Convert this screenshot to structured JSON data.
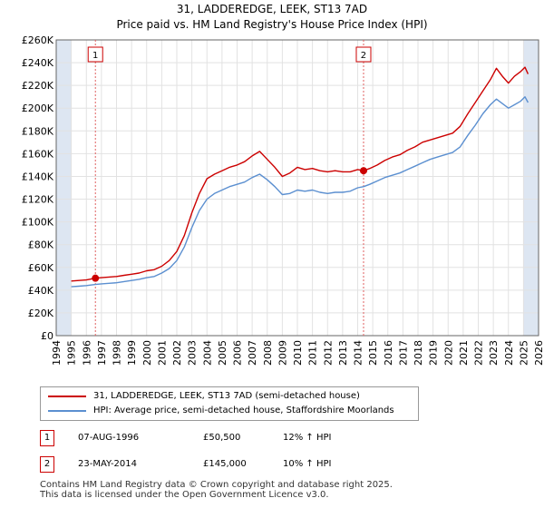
{
  "chart_data": {
    "type": "line",
    "title": "31, LADDEREDGE, LEEK, ST13 7AD",
    "subtitle": "Price paid vs. HM Land Registry's House Price Index (HPI)",
    "xlabel": "",
    "ylabel": "",
    "xlim": [
      1994,
      2026
    ],
    "ylim": [
      0,
      260000
    ],
    "x_ticks": [
      1994,
      1995,
      1996,
      1997,
      1998,
      1999,
      2000,
      2001,
      2002,
      2003,
      2004,
      2005,
      2006,
      2007,
      2008,
      2009,
      2010,
      2011,
      2012,
      2013,
      2014,
      2015,
      2016,
      2017,
      2018,
      2019,
      2020,
      2021,
      2022,
      2023,
      2024,
      2025,
      2026
    ],
    "y_ticks": [
      0,
      20000,
      40000,
      60000,
      80000,
      100000,
      120000,
      140000,
      160000,
      180000,
      200000,
      220000,
      240000,
      260000
    ],
    "y_tick_labels": [
      "£0",
      "£20K",
      "£40K",
      "£60K",
      "£80K",
      "£100K",
      "£120K",
      "£140K",
      "£160K",
      "£180K",
      "£200K",
      "£220K",
      "£240K",
      "£260K"
    ],
    "grid": true,
    "colors": {
      "property": "#cc0000",
      "hpi": "#5b8fd0",
      "marker_line": "#e06060",
      "shade": "#dde6f2"
    },
    "series": [
      {
        "name": "31, LADDEREDGE, LEEK, ST13 7AD (semi-detached house)",
        "color": "#cc0000",
        "x": [
          1995.0,
          1995.5,
          1996.0,
          1996.6,
          1997.0,
          1997.5,
          1998.0,
          1998.5,
          1999.0,
          1999.5,
          2000.0,
          2000.5,
          2001.0,
          2001.5,
          2002.0,
          2002.5,
          2003.0,
          2003.5,
          2004.0,
          2004.5,
          2005.0,
          2005.5,
          2006.0,
          2006.5,
          2007.0,
          2007.5,
          2008.0,
          2008.5,
          2009.0,
          2009.5,
          2010.0,
          2010.5,
          2011.0,
          2011.5,
          2012.0,
          2012.5,
          2013.0,
          2013.5,
          2014.0,
          2014.4,
          2014.8,
          2015.3,
          2015.8,
          2016.3,
          2016.8,
          2017.3,
          2017.8,
          2018.3,
          2018.8,
          2019.3,
          2019.8,
          2020.3,
          2020.8,
          2021.3,
          2021.8,
          2022.3,
          2022.8,
          2023.2,
          2023.6,
          2024.0,
          2024.4,
          2024.8,
          2025.1,
          2025.3
        ],
        "values": [
          48000,
          48500,
          49000,
          50500,
          51000,
          51500,
          52000,
          53000,
          54000,
          55000,
          57000,
          58000,
          61000,
          66000,
          74000,
          88000,
          108000,
          125000,
          138000,
          142000,
          145000,
          148000,
          150000,
          153000,
          158000,
          162000,
          155000,
          148000,
          140000,
          143000,
          148000,
          146000,
          147000,
          145000,
          144000,
          145000,
          144000,
          144000,
          146000,
          145000,
          147000,
          150000,
          154000,
          157000,
          159000,
          163000,
          166000,
          170000,
          172000,
          174000,
          176000,
          178000,
          184000,
          195000,
          205000,
          215000,
          225000,
          235000,
          228000,
          222000,
          228000,
          232000,
          236000,
          230000
        ]
      },
      {
        "name": "HPI: Average price, semi-detached house, Staffordshire Moorlands",
        "color": "#5b8fd0",
        "x": [
          1995.0,
          1995.5,
          1996.0,
          1996.6,
          1997.0,
          1997.5,
          1998.0,
          1998.5,
          1999.0,
          1999.5,
          2000.0,
          2000.5,
          2001.0,
          2001.5,
          2002.0,
          2002.5,
          2003.0,
          2003.5,
          2004.0,
          2004.5,
          2005.0,
          2005.5,
          2006.0,
          2006.5,
          2007.0,
          2007.5,
          2008.0,
          2008.5,
          2009.0,
          2009.5,
          2010.0,
          2010.5,
          2011.0,
          2011.5,
          2012.0,
          2012.5,
          2013.0,
          2013.5,
          2014.0,
          2014.4,
          2014.8,
          2015.3,
          2015.8,
          2016.3,
          2016.8,
          2017.3,
          2017.8,
          2018.3,
          2018.8,
          2019.3,
          2019.8,
          2020.3,
          2020.8,
          2021.3,
          2021.8,
          2022.3,
          2022.8,
          2023.2,
          2023.6,
          2024.0,
          2024.4,
          2024.8,
          2025.1,
          2025.3
        ],
        "values": [
          43000,
          43500,
          44000,
          45000,
          45500,
          46000,
          46500,
          47500,
          48500,
          49500,
          51000,
          52000,
          55000,
          59000,
          66000,
          78000,
          95000,
          110000,
          120000,
          125000,
          128000,
          131000,
          133000,
          135000,
          139000,
          142000,
          137000,
          131000,
          124000,
          125000,
          128000,
          127000,
          128000,
          126000,
          125000,
          126000,
          126000,
          127000,
          130000,
          131000,
          133000,
          136000,
          139000,
          141000,
          143000,
          146000,
          149000,
          152000,
          155000,
          157000,
          159000,
          161000,
          166000,
          176000,
          185000,
          195000,
          203000,
          208000,
          204000,
          200000,
          203000,
          206000,
          210000,
          205000
        ]
      }
    ],
    "sales": [
      {
        "id": "1",
        "x": 1996.6,
        "value": 50500
      },
      {
        "id": "2",
        "x": 2014.39,
        "value": 145000
      }
    ],
    "shaded_ranges": [
      [
        1994.0,
        1995.0
      ],
      [
        2025.0,
        2026.0
      ]
    ]
  },
  "legend": {
    "property_label": "31, LADDEREDGE, LEEK, ST13 7AD (semi-detached house)",
    "hpi_label": "HPI: Average price, semi-detached house, Staffordshire Moorlands"
  },
  "sales_table": [
    {
      "num": "1",
      "date": "07-AUG-1996",
      "price": "£50,500",
      "hpi": "12% ↑ HPI"
    },
    {
      "num": "2",
      "date": "23-MAY-2014",
      "price": "£145,000",
      "hpi": "10% ↑ HPI"
    }
  ],
  "footer": {
    "line1": "Contains HM Land Registry data © Crown copyright and database right 2025.",
    "line2": "This data is licensed under the Open Government Licence v3.0."
  }
}
